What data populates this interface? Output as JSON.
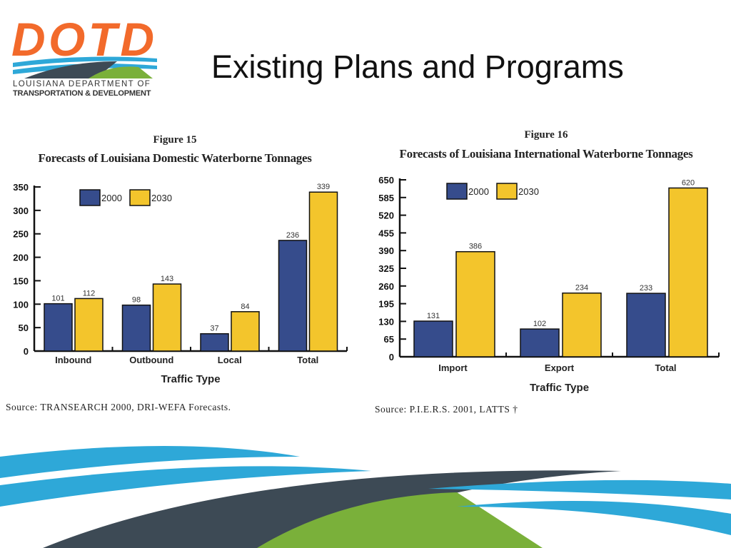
{
  "header": {
    "title": "Existing Plans and Programs",
    "logo": {
      "text": "DOTD",
      "line1": "LOUISIANA DEPARTMENT OF",
      "line2": "TRANSPORTATION & DEVELOPMENT"
    }
  },
  "colors": {
    "series_2000": "#364c8c",
    "series_2030": "#f3c52c",
    "logo_orange": "#f26a2b",
    "logo_blue": "#2ea8d8",
    "logo_dark": "#3d4a55",
    "logo_green": "#7ab03a"
  },
  "chart_data": [
    {
      "type": "bar",
      "figure": "Figure 15",
      "title": "Forecasts of Louisiana Domestic Waterborne Tonnages",
      "xlabel": "Traffic Type",
      "ylabel": "",
      "categories": [
        "Inbound",
        "Outbound",
        "Local",
        "Total"
      ],
      "ylim": [
        0,
        350
      ],
      "yticks": [
        0,
        50,
        100,
        150,
        200,
        250,
        300,
        350
      ],
      "legend": "top-left",
      "grid": false,
      "series": [
        {
          "name": "2000",
          "values": [
            101,
            98,
            37,
            236
          ]
        },
        {
          "name": "2030",
          "values": [
            112,
            143,
            84,
            339
          ]
        }
      ],
      "source": "Source: TRANSEARCH 2000, DRI-WEFA Forecasts."
    },
    {
      "type": "bar",
      "figure": "Figure 16",
      "title": "Forecasts of Louisiana International Waterborne Tonnages",
      "xlabel": "Traffic Type",
      "ylabel": "",
      "categories": [
        "Import",
        "Export",
        "Total"
      ],
      "ylim": [
        0,
        650
      ],
      "yticks": [
        0,
        65,
        130,
        195,
        260,
        325,
        390,
        455,
        520,
        585,
        650
      ],
      "legend": "top-left",
      "grid": false,
      "series": [
        {
          "name": "2000",
          "values": [
            131,
            102,
            233
          ]
        },
        {
          "name": "2030",
          "values": [
            386,
            234,
            620
          ]
        }
      ],
      "source": "Source: P.I.E.R.S. 2001, LATTS †"
    }
  ]
}
